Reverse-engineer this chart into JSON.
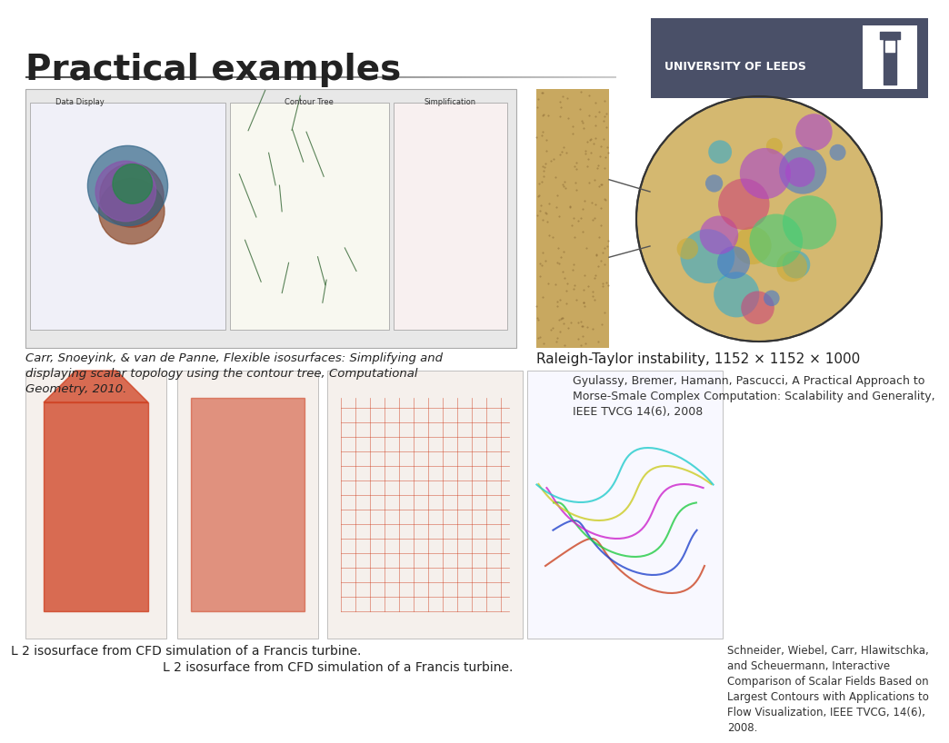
{
  "title": "Practical examples",
  "title_fontsize": 28,
  "title_color": "#222222",
  "background_color": "#ffffff",
  "header_line_color_left": "#888888",
  "header_line_color_right": "#444444",
  "logo_bg_color": "#4a5068",
  "logo_text": "UNIVERSITY OF LEEDS",
  "logo_text_color": "#ffffff",
  "logo_text_fontsize": 9,
  "caption1": "Carr, Snoeyink, & van de Panne, Flexible isosurfaces: Simplifying and\ndisplaying scalar topology using the contour tree, Computational\nGeometry, 2010.",
  "caption1_fontsize": 9.5,
  "caption2_title": "Raleigh-Taylor instability, 1152 × 1152 × 1000",
  "caption2_title_fontsize": 11,
  "caption2_body": "Gyulassy, Bremer, Hamann, Pascucci, A Practical Approach to\nMorse-Smale Complex Computation: Scalability and Generality,\nIEEE TVCG 14(6), 2008",
  "caption2_body_fontsize": 9,
  "caption3": "L 2 isosurface from CFD simulation of a Francis turbine.",
  "caption3_fontsize": 10,
  "caption4": "Schneider, Wiebel, Carr, Hlawitschka,\nand Scheuermann, Interactive\nComparison of Scalar Fields Based on\nLargest Contours with Applications to\nFlow Visualization, IEEE TVCG, 14(6),\n2008.",
  "caption4_fontsize": 8.5,
  "image1_placeholder_color": "#d0d0d0",
  "image2_placeholder_color": "#c8b090",
  "image3_placeholder_color": "#cc4422",
  "image4_placeholder_color": "#ddccaa"
}
